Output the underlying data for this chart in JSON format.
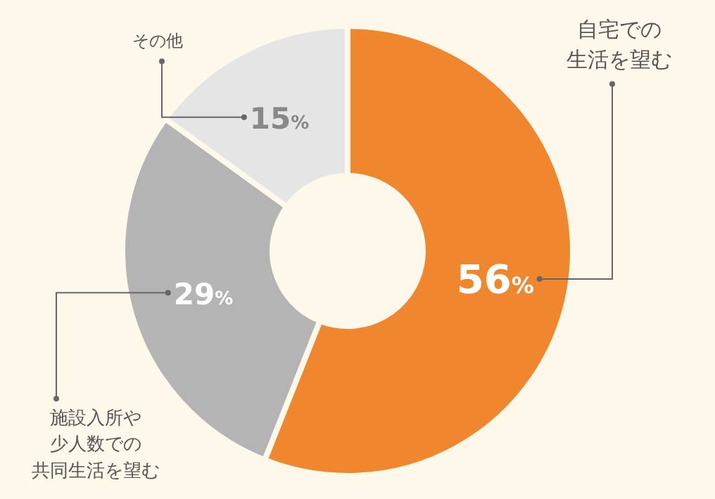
{
  "chart_data": {
    "type": "donut",
    "categories": [
      "自宅での生活を望む",
      "施設入所や少人数での共同生活を望む",
      "その他"
    ],
    "values": [
      56,
      29,
      15
    ],
    "colors": [
      "#f0862e",
      "#b4b4b4",
      "#e5e5e5"
    ],
    "value_labels": [
      "56%",
      "29%",
      "15%"
    ],
    "legend": false
  }
}
